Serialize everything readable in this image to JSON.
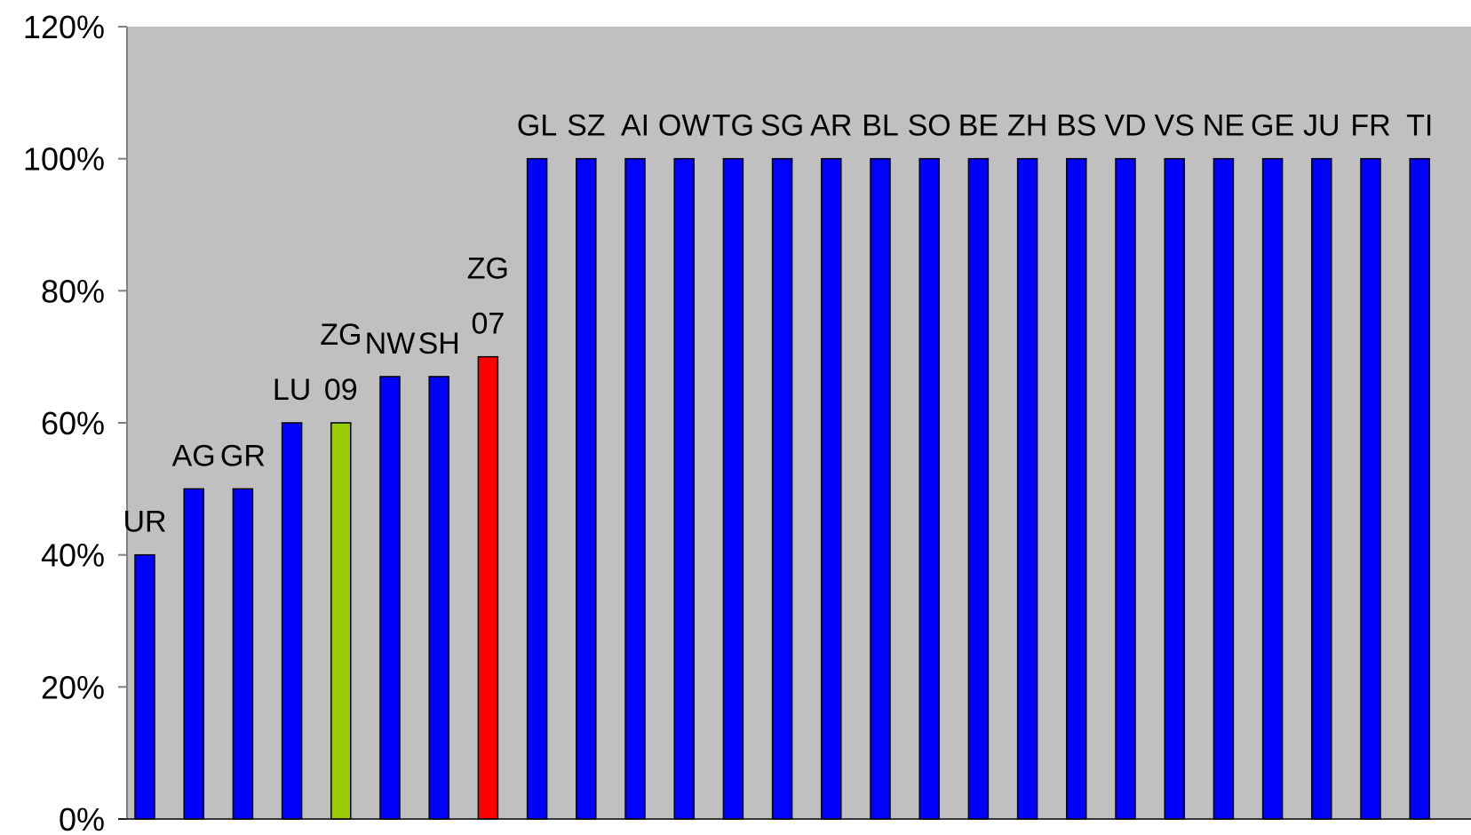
{
  "chart_data": {
    "type": "bar",
    "title": "",
    "xlabel": "",
    "ylabel": "",
    "ylim": [
      0,
      1.2
    ],
    "y_ticks": [
      "0%",
      "20%",
      "40%",
      "60%",
      "80%",
      "100%",
      "120%"
    ],
    "y_tick_values": [
      0,
      0.2,
      0.4,
      0.6,
      0.8,
      1.0,
      1.2
    ],
    "grid": false,
    "legend": "none",
    "plot_background": "#C0C0C0",
    "colors": {
      "default": "#0000FF",
      "highlight_zg09": "#99CC00",
      "highlight_zg07": "#FF0000",
      "axis": "#808080"
    },
    "bars": [
      {
        "label": [
          "UR"
        ],
        "value": 0.4,
        "color": "#0000FF"
      },
      {
        "label": [
          "AG"
        ],
        "value": 0.5,
        "color": "#0000FF"
      },
      {
        "label": [
          "GR"
        ],
        "value": 0.5,
        "color": "#0000FF"
      },
      {
        "label": [
          "LU"
        ],
        "value": 0.6,
        "color": "#0000FF"
      },
      {
        "label": [
          "ZG",
          "09"
        ],
        "value": 0.6,
        "color": "#99CC00"
      },
      {
        "label": [
          "NW"
        ],
        "value": 0.67,
        "color": "#0000FF"
      },
      {
        "label": [
          "SH"
        ],
        "value": 0.67,
        "color": "#0000FF"
      },
      {
        "label": [
          "ZG",
          "07"
        ],
        "value": 0.7,
        "color": "#FF0000"
      },
      {
        "label": [
          "GL"
        ],
        "value": 1.0,
        "color": "#0000FF"
      },
      {
        "label": [
          "SZ"
        ],
        "value": 1.0,
        "color": "#0000FF"
      },
      {
        "label": [
          "AI"
        ],
        "value": 1.0,
        "color": "#0000FF"
      },
      {
        "label": [
          "OW"
        ],
        "value": 1.0,
        "color": "#0000FF"
      },
      {
        "label": [
          "TG"
        ],
        "value": 1.0,
        "color": "#0000FF"
      },
      {
        "label": [
          "SG"
        ],
        "value": 1.0,
        "color": "#0000FF"
      },
      {
        "label": [
          "AR"
        ],
        "value": 1.0,
        "color": "#0000FF"
      },
      {
        "label": [
          "BL"
        ],
        "value": 1.0,
        "color": "#0000FF"
      },
      {
        "label": [
          "SO"
        ],
        "value": 1.0,
        "color": "#0000FF"
      },
      {
        "label": [
          "BE"
        ],
        "value": 1.0,
        "color": "#0000FF"
      },
      {
        "label": [
          "ZH"
        ],
        "value": 1.0,
        "color": "#0000FF"
      },
      {
        "label": [
          "BS"
        ],
        "value": 1.0,
        "color": "#0000FF"
      },
      {
        "label": [
          "VD"
        ],
        "value": 1.0,
        "color": "#0000FF"
      },
      {
        "label": [
          "VS"
        ],
        "value": 1.0,
        "color": "#0000FF"
      },
      {
        "label": [
          "NE"
        ],
        "value": 1.0,
        "color": "#0000FF"
      },
      {
        "label": [
          "GE"
        ],
        "value": 1.0,
        "color": "#0000FF"
      },
      {
        "label": [
          "JU"
        ],
        "value": 1.0,
        "color": "#0000FF"
      },
      {
        "label": [
          "FR"
        ],
        "value": 1.0,
        "color": "#0000FF"
      },
      {
        "label": [
          "TI"
        ],
        "value": 1.0,
        "color": "#0000FF"
      }
    ]
  }
}
